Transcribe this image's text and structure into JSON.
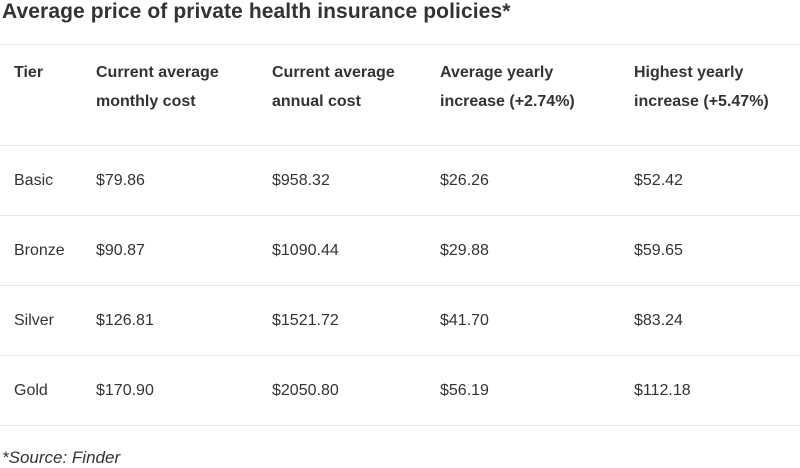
{
  "title": "Average price of private health insurance policies*",
  "table": {
    "headers": [
      [
        "Tier",
        ""
      ],
      [
        "Current average",
        "monthly cost"
      ],
      [
        "Current average",
        "annual cost"
      ],
      [
        "Average yearly",
        "increase (+2.74%)"
      ],
      [
        "Highest yearly",
        "increase (+5.47%)"
      ]
    ],
    "rows": [
      [
        "Basic",
        "$79.86",
        "$958.32",
        "$26.26",
        "$52.42"
      ],
      [
        "Bronze",
        "$90.87",
        "$1090.44",
        "$29.88",
        "$59.65"
      ],
      [
        "Silver",
        "$126.81",
        "$1521.72",
        "$41.70",
        "$83.24"
      ],
      [
        "Gold",
        "$170.90",
        "$2050.80",
        "$56.19",
        "$112.18"
      ]
    ]
  },
  "source": "*Source: Finder"
}
